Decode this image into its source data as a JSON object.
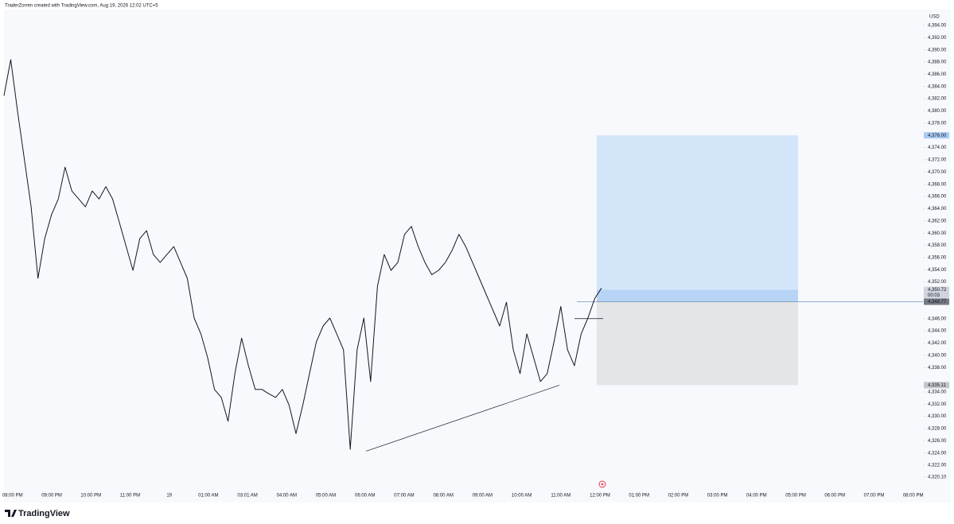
{
  "chart_data": {
    "type": "line",
    "header": "TraderZorren created with TradingView.com, Aug 19, 2026 12:02 UTC+5",
    "currency": "USD",
    "brand": "TradingView",
    "color": "#131722",
    "values": [
      4382.5,
      4388.4,
      4379.9,
      4372.1,
      4364.3,
      4352.6,
      4359.1,
      4363.0,
      4365.6,
      4370.8,
      4366.9,
      4365.6,
      4364.3,
      4366.9,
      4365.6,
      4367.6,
      4365.6,
      4361.7,
      4357.8,
      4353.9,
      4359.1,
      4360.4,
      4356.5,
      4355.2,
      4356.5,
      4357.8,
      4355.2,
      4352.6,
      4346.1,
      4343.5,
      4339.6,
      4334.4,
      4333.1,
      4329.2,
      4337.0,
      4342.8,
      4338.3,
      4334.4,
      4334.4,
      4333.7,
      4333.1,
      4334.4,
      4331.8,
      4327.2,
      4331.8,
      4337.0,
      4342.2,
      4344.8,
      4346.1,
      4343.5,
      4340.9,
      4324.6,
      4340.9,
      4346.1,
      4335.7,
      4351.3,
      4356.5,
      4353.9,
      4355.2,
      4359.8,
      4361.1,
      4357.8,
      4355.2,
      4353.2,
      4353.9,
      4355.2,
      4357.2,
      4359.8,
      4357.8,
      4355.2,
      4352.6,
      4350.0,
      4347.4,
      4344.8,
      4348.7,
      4340.9,
      4337.0,
      4343.5,
      4339.6,
      4335.7,
      4337.0,
      4342.2,
      4348.0,
      4340.9,
      4338.3,
      4343.5,
      4346.1,
      4349.3,
      4351.0
    ],
    "ylim": [
      4318.5,
      4396.6
    ],
    "yticks": [
      {
        "value": 4394,
        "label": "4,394.00"
      },
      {
        "value": 4392,
        "label": "4,392.00"
      },
      {
        "value": 4390,
        "label": "4,390.00"
      },
      {
        "value": 4388,
        "label": "4,388.00"
      },
      {
        "value": 4386,
        "label": "4,386.00"
      },
      {
        "value": 4384,
        "label": "4,384.00"
      },
      {
        "value": 4382,
        "label": "4,382.00"
      },
      {
        "value": 4380,
        "label": "4,380.00"
      },
      {
        "value": 4378,
        "label": "4,378.00"
      },
      {
        "value": 4374,
        "label": "4,374.00"
      },
      {
        "value": 4372,
        "label": "4,372.00"
      },
      {
        "value": 4370,
        "label": "4,370.00"
      },
      {
        "value": 4368,
        "label": "4,368.00"
      },
      {
        "value": 4366,
        "label": "4,366.00"
      },
      {
        "value": 4364,
        "label": "4,364.00"
      },
      {
        "value": 4362,
        "label": "4,362.00"
      },
      {
        "value": 4360,
        "label": "4,360.00"
      },
      {
        "value": 4358,
        "label": "4,358.00"
      },
      {
        "value": 4356,
        "label": "4,356.00"
      },
      {
        "value": 4354,
        "label": "4,354.00"
      },
      {
        "value": 4352,
        "label": "4,352.00"
      },
      {
        "value": 4346,
        "label": "4,346.00"
      },
      {
        "value": 4344,
        "label": "4,344.00"
      },
      {
        "value": 4342,
        "label": "4,342.00"
      },
      {
        "value": 4340,
        "label": "4,340.00"
      },
      {
        "value": 4338,
        "label": "4,338.00"
      },
      {
        "value": 4334,
        "label": "4,334.00"
      },
      {
        "value": 4332,
        "label": "4,332.00"
      },
      {
        "value": 4330,
        "label": "4,330.00"
      },
      {
        "value": 4328,
        "label": "4,328.00"
      },
      {
        "value": 4326,
        "label": "4,326.00"
      },
      {
        "value": 4324,
        "label": "4,324.00"
      },
      {
        "value": 4322,
        "label": "4,322.00"
      },
      {
        "value": 4320.1,
        "label": "4,320.10"
      }
    ],
    "xlim": [
      -0.22,
      23.25
    ],
    "xticks": [
      {
        "value": 0,
        "label": "08:00 PM"
      },
      {
        "value": 1,
        "label": "09:00 PM"
      },
      {
        "value": 2,
        "label": "10:00 PM"
      },
      {
        "value": 3,
        "label": "11:00 PM"
      },
      {
        "value": 4,
        "label": "19"
      },
      {
        "value": 5,
        "label": "01:00 AM"
      },
      {
        "value": 6,
        "label": "03:01 AM"
      },
      {
        "value": 7,
        "label": "04:00 AM"
      },
      {
        "value": 8,
        "label": "05:00 AM"
      },
      {
        "value": 9,
        "label": "06:00 AM"
      },
      {
        "value": 10,
        "label": "07:00 AM"
      },
      {
        "value": 11,
        "label": "08:00 AM"
      },
      {
        "value": 12,
        "label": "09:00 AM"
      },
      {
        "value": 13,
        "label": "10:00 AM"
      },
      {
        "value": 14,
        "label": "11:00 AM"
      },
      {
        "value": 15,
        "label": "12:00 PM"
      },
      {
        "value": 16,
        "label": "01:00 PM"
      },
      {
        "value": 17,
        "label": "02:00 PM"
      },
      {
        "value": 18,
        "label": "03:00 PM"
      },
      {
        "value": 19,
        "label": "04:00 PM"
      },
      {
        "value": 20,
        "label": "05:00 PM"
      },
      {
        "value": 21,
        "label": "06:00 PM"
      },
      {
        "value": 22,
        "label": "07:00 PM"
      },
      {
        "value": 23,
        "label": "08:00 PM"
      }
    ],
    "position": {
      "target": 4376.0,
      "entry": 4348.77,
      "stop": 4335.11,
      "profit_color": "#d3e5f9",
      "loss_color": "#e4e5e8"
    },
    "trendline": [
      4324.3,
      4335.1
    ],
    "level": 4346.0,
    "price_labels": [
      {
        "value": 4376.0,
        "label": "4,376.00",
        "color": "#a9cbf3",
        "text_color": "#131722"
      },
      {
        "value": 4350.72,
        "label": "4,350.72",
        "color": "#d1d4dc",
        "text_color": "#131722"
      },
      {
        "value": 4348.77,
        "label": "4,348.77",
        "color": "#787b86",
        "text_color": "#ffffff"
      },
      {
        "value": 4335.11,
        "label": "4,335.11",
        "color": "#c4c6cc",
        "text_color": "#131722"
      }
    ],
    "countdown": "00:03"
  }
}
